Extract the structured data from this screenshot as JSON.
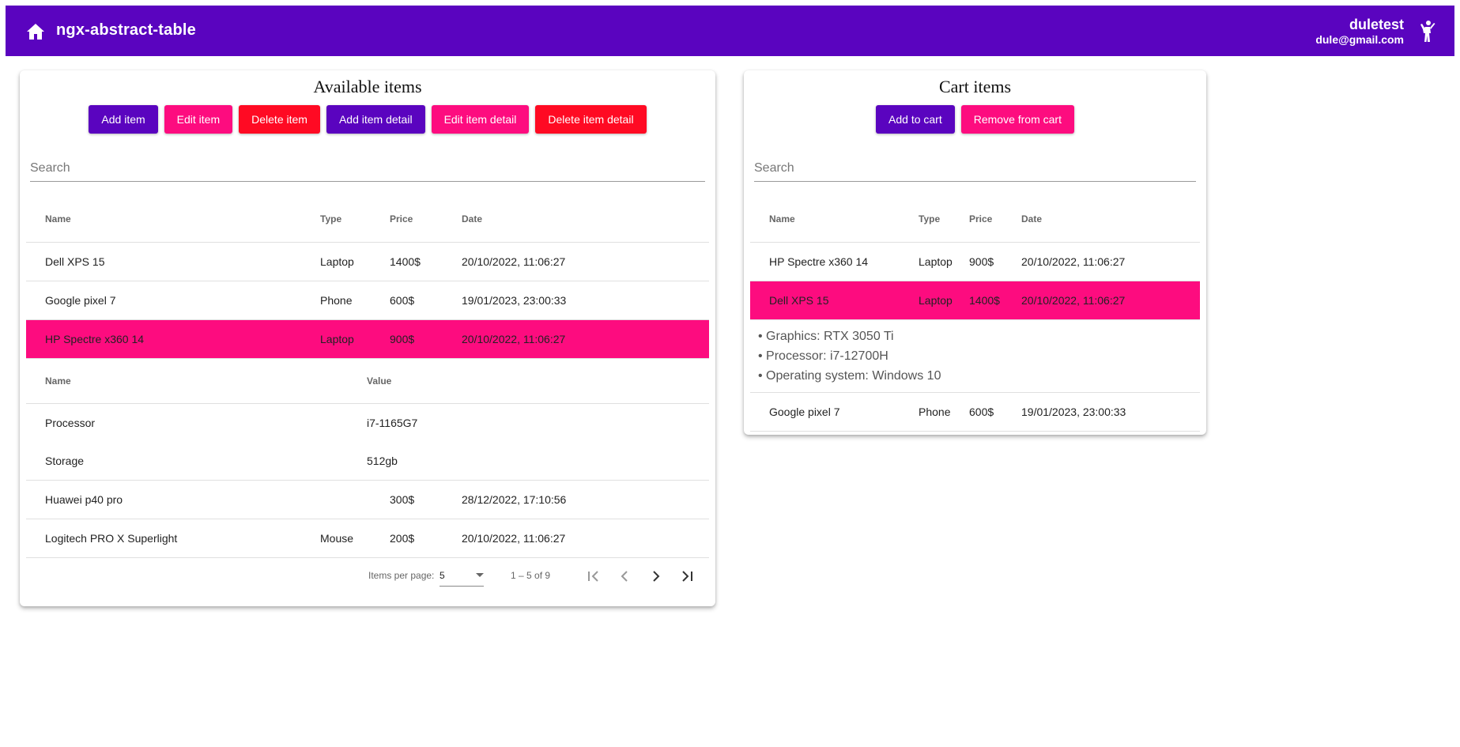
{
  "header": {
    "title": "ngx-abstract-table",
    "user_name": "duletest",
    "user_email": "dule@gmail.com"
  },
  "available": {
    "title": "Available items",
    "buttons": [
      "Add item",
      "Edit item",
      "Delete item",
      "Add item detail",
      "Edit item detail",
      "Delete item detail"
    ],
    "search_placeholder": "Search",
    "columns": [
      "Name",
      "Type",
      "Price",
      "Date"
    ],
    "rows": [
      {
        "name": "Dell XPS 15",
        "type": "Laptop",
        "price": "1400$",
        "date": "20/10/2022, 11:06:27"
      },
      {
        "name": "Google pixel 7",
        "type": "Phone",
        "price": "600$",
        "date": "19/01/2023, 23:00:33"
      },
      {
        "name": "HP Spectre x360 14",
        "type": "Laptop",
        "price": "900$",
        "date": "20/10/2022, 11:06:27"
      },
      {
        "name": "Huawei p40 pro",
        "type": "",
        "price": "300$",
        "date": "28/12/2022, 17:10:56"
      },
      {
        "name": "Logitech PRO X Superlight",
        "type": "Mouse",
        "price": "200$",
        "date": "20/10/2022, 11:06:27"
      }
    ],
    "detail": {
      "columns": [
        "Name",
        "Value"
      ],
      "rows": [
        {
          "name": "Processor",
          "value": "i7-1165G7"
        },
        {
          "name": "Storage",
          "value": "512gb"
        }
      ]
    },
    "paginator": {
      "items_per_page_label": "Items per page:",
      "items_per_page": "5",
      "range": "1 – 5 of 9"
    }
  },
  "cart": {
    "title": "Cart items",
    "buttons": [
      "Add to cart",
      "Remove from cart"
    ],
    "search_placeholder": "Search",
    "columns": [
      "Name",
      "Type",
      "Price",
      "Date"
    ],
    "rows": [
      {
        "name": "HP Spectre x360 14",
        "type": "Laptop",
        "price": "900$",
        "date": "20/10/2022, 11:06:27"
      },
      {
        "name": "Dell XPS 15",
        "type": "Laptop",
        "price": "1400$",
        "date": "20/10/2022, 11:06:27"
      },
      {
        "name": "Google pixel 7",
        "type": "Phone",
        "price": "600$",
        "date": "19/01/2023, 23:00:33"
      }
    ],
    "detail_bullets": [
      "• Graphics: RTX 3050 Ti",
      "• Processor: i7-12700H",
      "• Operating system: Windows 10"
    ]
  },
  "colors": {
    "primary": "#5a04bf",
    "accent": "#fd0c7f",
    "warn": "#ff0a23"
  },
  "icons": [
    "home-icon",
    "user-icon",
    "first-page-icon",
    "previous-page-icon",
    "next-page-icon",
    "last-page-icon",
    "dropdown-arrow-icon"
  ]
}
